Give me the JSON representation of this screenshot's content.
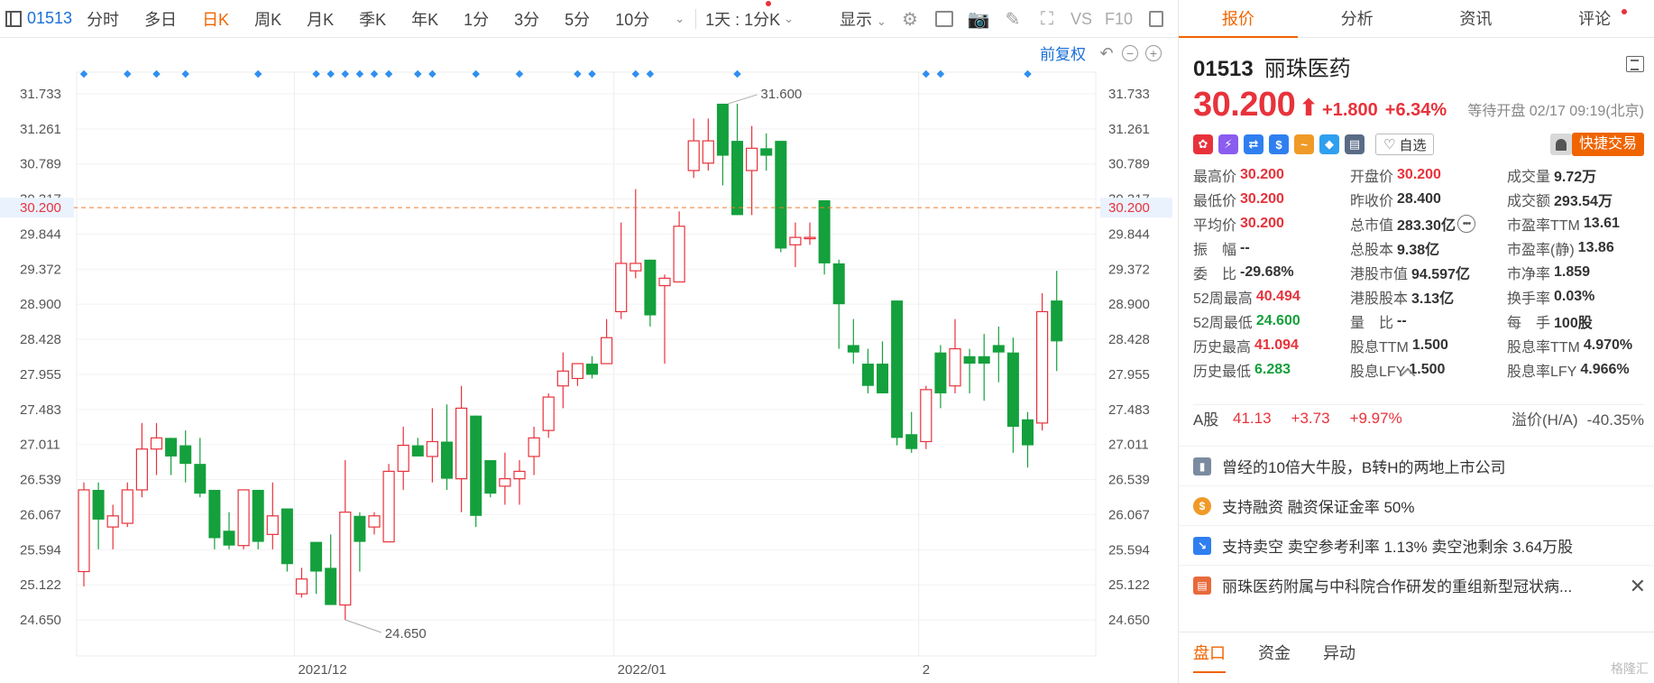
{
  "toolbar": {
    "code": "01513",
    "items": [
      "分时",
      "多日",
      "日K",
      "周K",
      "月K",
      "季K",
      "年K",
      "1分",
      "3分",
      "5分",
      "10分"
    ],
    "active": "日K",
    "range_label": "1天 : 1分K",
    "display_label": "显示",
    "vs_label": "VS",
    "f10_label": "F10"
  },
  "chart_controls": {
    "fq_label": "前复权"
  },
  "chart_data": {
    "type": "candlestick",
    "title": "",
    "y_ticks": [
      31.733,
      31.261,
      30.789,
      30.317,
      29.844,
      29.372,
      28.9,
      28.428,
      27.955,
      27.483,
      27.011,
      26.539,
      26.067,
      25.594,
      25.122,
      24.65
    ],
    "x_labels": [
      {
        "index": 15,
        "label": "2021/12"
      },
      {
        "index": 37,
        "label": "2022/01"
      },
      {
        "index": 58,
        "label": "2"
      }
    ],
    "current_price": 30.2,
    "high_annotation": {
      "index": 44,
      "value": 31.6,
      "label": "31.600"
    },
    "low_annotation": {
      "index": 18,
      "value": 24.65,
      "label": "24.650"
    },
    "marker_indices": [
      0,
      3,
      5,
      7,
      12,
      16,
      17,
      18,
      19,
      20,
      21,
      23,
      24,
      27,
      30,
      34,
      35,
      38,
      39,
      45,
      58,
      59,
      65
    ],
    "candles": [
      {
        "o": 25.3,
        "h": 26.5,
        "l": 25.1,
        "c": 26.4
      },
      {
        "o": 26.4,
        "h": 26.5,
        "l": 25.6,
        "c": 26.0
      },
      {
        "o": 25.9,
        "h": 26.2,
        "l": 25.6,
        "c": 26.05
      },
      {
        "o": 25.95,
        "h": 26.5,
        "l": 25.9,
        "c": 26.4
      },
      {
        "o": 26.4,
        "h": 27.3,
        "l": 26.3,
        "c": 26.95
      },
      {
        "o": 26.95,
        "h": 27.3,
        "l": 26.6,
        "c": 27.1
      },
      {
        "o": 27.1,
        "h": 27.1,
        "l": 26.6,
        "c": 26.85
      },
      {
        "o": 27.0,
        "h": 27.2,
        "l": 26.5,
        "c": 26.75
      },
      {
        "o": 26.75,
        "h": 27.1,
        "l": 26.3,
        "c": 26.35
      },
      {
        "o": 26.4,
        "h": 26.4,
        "l": 25.6,
        "c": 25.75
      },
      {
        "o": 25.85,
        "h": 26.1,
        "l": 25.6,
        "c": 25.65
      },
      {
        "o": 25.65,
        "h": 26.4,
        "l": 25.6,
        "c": 26.4
      },
      {
        "o": 26.4,
        "h": 26.4,
        "l": 25.6,
        "c": 25.7
      },
      {
        "o": 25.8,
        "h": 26.5,
        "l": 25.6,
        "c": 26.05
      },
      {
        "o": 26.15,
        "h": 26.15,
        "l": 25.3,
        "c": 25.4
      },
      {
        "o": 25.0,
        "h": 25.35,
        "l": 24.95,
        "c": 25.2
      },
      {
        "o": 25.7,
        "h": 25.7,
        "l": 25.0,
        "c": 25.3
      },
      {
        "o": 25.35,
        "h": 25.8,
        "l": 24.85,
        "c": 24.85
      },
      {
        "o": 24.85,
        "h": 26.8,
        "l": 24.65,
        "c": 26.1
      },
      {
        "o": 26.05,
        "h": 26.1,
        "l": 25.3,
        "c": 25.7
      },
      {
        "o": 25.9,
        "h": 26.1,
        "l": 25.8,
        "c": 26.05
      },
      {
        "o": 25.7,
        "h": 26.75,
        "l": 25.7,
        "c": 26.65
      },
      {
        "o": 26.65,
        "h": 27.25,
        "l": 26.4,
        "c": 27.0
      },
      {
        "o": 27.0,
        "h": 27.1,
        "l": 26.9,
        "c": 26.85
      },
      {
        "o": 26.85,
        "h": 27.5,
        "l": 26.5,
        "c": 27.05
      },
      {
        "o": 27.05,
        "h": 27.55,
        "l": 26.4,
        "c": 26.55
      },
      {
        "o": 26.55,
        "h": 27.8,
        "l": 26.1,
        "c": 27.5
      },
      {
        "o": 27.4,
        "h": 27.4,
        "l": 25.9,
        "c": 26.05
      },
      {
        "o": 26.8,
        "h": 26.8,
        "l": 26.3,
        "c": 26.35
      },
      {
        "o": 26.45,
        "h": 26.9,
        "l": 26.2,
        "c": 26.55
      },
      {
        "o": 26.55,
        "h": 26.8,
        "l": 26.2,
        "c": 26.65
      },
      {
        "o": 26.85,
        "h": 27.25,
        "l": 26.6,
        "c": 27.1
      },
      {
        "o": 27.2,
        "h": 27.7,
        "l": 27.1,
        "c": 27.65
      },
      {
        "o": 27.8,
        "h": 28.25,
        "l": 27.5,
        "c": 28.0
      },
      {
        "o": 27.9,
        "h": 28.1,
        "l": 27.8,
        "c": 28.1
      },
      {
        "o": 28.1,
        "h": 28.2,
        "l": 27.9,
        "c": 27.95
      },
      {
        "o": 28.1,
        "h": 28.7,
        "l": 28.1,
        "c": 28.45
      },
      {
        "o": 28.8,
        "h": 30.0,
        "l": 28.7,
        "c": 29.45
      },
      {
        "o": 29.35,
        "h": 30.45,
        "l": 29.25,
        "c": 29.45
      },
      {
        "o": 29.5,
        "h": 29.5,
        "l": 28.6,
        "c": 28.75
      },
      {
        "o": 29.15,
        "h": 29.3,
        "l": 28.1,
        "c": 29.25
      },
      {
        "o": 29.2,
        "h": 30.15,
        "l": 29.2,
        "c": 29.95
      },
      {
        "o": 30.7,
        "h": 31.4,
        "l": 30.6,
        "c": 31.1
      },
      {
        "o": 30.8,
        "h": 31.4,
        "l": 30.7,
        "c": 31.1
      },
      {
        "o": 31.6,
        "h": 31.6,
        "l": 30.5,
        "c": 30.9
      },
      {
        "o": 31.1,
        "h": 31.6,
        "l": 30.1,
        "c": 30.1
      },
      {
        "o": 30.7,
        "h": 31.3,
        "l": 30.1,
        "c": 31.0
      },
      {
        "o": 31.0,
        "h": 31.2,
        "l": 30.7,
        "c": 30.9
      },
      {
        "o": 31.1,
        "h": 31.1,
        "l": 29.6,
        "c": 29.65
      },
      {
        "o": 29.7,
        "h": 30.0,
        "l": 29.4,
        "c": 29.8
      },
      {
        "o": 29.8,
        "h": 30.0,
        "l": 29.7,
        "c": 29.8
      },
      {
        "o": 30.3,
        "h": 30.3,
        "l": 29.3,
        "c": 29.45
      },
      {
        "o": 29.45,
        "h": 29.5,
        "l": 28.3,
        "c": 28.9
      },
      {
        "o": 28.35,
        "h": 28.7,
        "l": 28.1,
        "c": 28.25
      },
      {
        "o": 28.1,
        "h": 28.3,
        "l": 27.7,
        "c": 27.8
      },
      {
        "o": 28.1,
        "h": 28.4,
        "l": 27.7,
        "c": 27.7
      },
      {
        "o": 28.95,
        "h": 28.95,
        "l": 27.0,
        "c": 27.1
      },
      {
        "o": 27.15,
        "h": 27.45,
        "l": 26.9,
        "c": 26.95
      },
      {
        "o": 27.05,
        "h": 27.8,
        "l": 26.95,
        "c": 27.75
      },
      {
        "o": 28.25,
        "h": 28.35,
        "l": 27.5,
        "c": 27.7
      },
      {
        "o": 27.8,
        "h": 28.7,
        "l": 27.7,
        "c": 28.3
      },
      {
        "o": 28.2,
        "h": 28.3,
        "l": 27.7,
        "c": 28.1
      },
      {
        "o": 28.2,
        "h": 28.5,
        "l": 27.6,
        "c": 28.1
      },
      {
        "o": 28.35,
        "h": 28.6,
        "l": 27.85,
        "c": 28.25
      },
      {
        "o": 28.25,
        "h": 28.45,
        "l": 26.9,
        "c": 27.25
      },
      {
        "o": 27.35,
        "h": 27.45,
        "l": 26.7,
        "c": 27.0
      },
      {
        "o": 27.3,
        "h": 29.05,
        "l": 27.2,
        "c": 28.8
      },
      {
        "o": 28.95,
        "h": 29.35,
        "l": 28.0,
        "c": 28.4
      }
    ]
  },
  "tabs": [
    "报价",
    "分析",
    "资讯",
    "评论"
  ],
  "active_tab": "报价",
  "stock": {
    "code": "01513",
    "name": "丽珠医药",
    "price": "30.200",
    "arrow": "⬆",
    "change": "+1.800",
    "change_pct": "+6.34%",
    "status": "等待开盘 02/17 09:19(北京)",
    "watch_label": "自选",
    "fast_trade_label": "快捷交易"
  },
  "badges": [
    {
      "icon": "hk-connect-icon",
      "color": "#e8323b",
      "glyph": "✿"
    },
    {
      "icon": "lightning-icon",
      "color": "#8a5cf0",
      "glyph": "⚡"
    },
    {
      "icon": "swap-icon",
      "color": "#2f7ff0",
      "glyph": "⇄"
    },
    {
      "icon": "dollar-icon",
      "color": "#2f7ff0",
      "glyph": "$"
    },
    {
      "icon": "trend-icon",
      "color": "#f09a28",
      "glyph": "~"
    },
    {
      "icon": "tag-icon",
      "color": "#2f9ff0",
      "glyph": "◆"
    },
    {
      "icon": "doc-icon",
      "color": "#5a6b85",
      "glyph": "▤"
    }
  ],
  "quote_grid": [
    [
      {
        "label": "最高价",
        "value": "30.200",
        "color": "red"
      },
      {
        "label": "开盘价",
        "value": "30.200",
        "color": "red"
      },
      {
        "label": "成交量",
        "value": "9.72万",
        "color": ""
      }
    ],
    [
      {
        "label": "最低价",
        "value": "30.200",
        "color": "red"
      },
      {
        "label": "昨收价",
        "value": "28.400",
        "color": ""
      },
      {
        "label": "成交额",
        "value": "293.54万",
        "color": ""
      }
    ],
    [
      {
        "label": "平均价",
        "value": "30.200",
        "color": "red"
      },
      {
        "label": "总市值",
        "value": "283.30亿",
        "color": "",
        "more": "•••"
      },
      {
        "label": "市盈率TTM",
        "value": "13.61",
        "color": ""
      }
    ],
    [
      {
        "label": "振　幅",
        "value": "--",
        "color": ""
      },
      {
        "label": "总股本",
        "value": "9.38亿",
        "color": ""
      },
      {
        "label": "市盈率(静)",
        "value": "13.86",
        "color": ""
      }
    ],
    [
      {
        "label": "委　比",
        "value": "-29.68%",
        "color": ""
      },
      {
        "label": "港股市值",
        "value": "94.597亿",
        "color": ""
      },
      {
        "label": "市净率",
        "value": "1.859",
        "color": ""
      }
    ],
    [
      {
        "label": "52周最高",
        "value": "40.494",
        "color": "red"
      },
      {
        "label": "港股股本",
        "value": "3.13亿",
        "color": ""
      },
      {
        "label": "换手率",
        "value": "0.03%",
        "color": ""
      }
    ],
    [
      {
        "label": "52周最低",
        "value": "24.600",
        "color": "green"
      },
      {
        "label": "量　比",
        "value": "--",
        "color": ""
      },
      {
        "label": "每　手",
        "value": "100股",
        "color": ""
      }
    ],
    [
      {
        "label": "历史最高",
        "value": "41.094",
        "color": "red"
      },
      {
        "label": "股息TTM",
        "value": "1.500",
        "color": ""
      },
      {
        "label": "股息率TTM",
        "value": "4.970%",
        "color": ""
      }
    ],
    [
      {
        "label": "历史最低",
        "value": "6.283",
        "color": "green"
      },
      {
        "label": "股息LFY",
        "value": "1.500",
        "color": ""
      },
      {
        "label": "股息率LFY",
        "value": "4.966%",
        "color": ""
      }
    ]
  ],
  "a_share": {
    "label": "A股",
    "price": "41.13",
    "change": "+3.73",
    "change_pct": "+9.97%",
    "premium_label": "溢价(H/A)",
    "premium_value": "-40.35%"
  },
  "info_rows": [
    {
      "icon": "book-icon",
      "icon_color": "#7a8ba0",
      "glyph": "▮",
      "text": "曾经的10倍大牛股，B转H的两地上市公司"
    },
    {
      "icon": "coin-icon",
      "icon_color": "#f09a28",
      "glyph": "$",
      "text": "支持融资 融资保证金率 50%"
    },
    {
      "icon": "short-icon",
      "icon_color": "#2f7ff0",
      "glyph": "↘",
      "text": "支持卖空 卖空参考利率 1.13% 卖空池剩余 3.64万股"
    },
    {
      "icon": "news-icon",
      "icon_color": "#e86a3b",
      "glyph": "▤",
      "text": "丽珠医药附属与中科院合作研发的重组新型冠状病..."
    }
  ],
  "bottom_tabs": [
    "盘口",
    "资金",
    "异动"
  ],
  "active_bottom_tab": "盘口",
  "watermark": "格隆汇"
}
